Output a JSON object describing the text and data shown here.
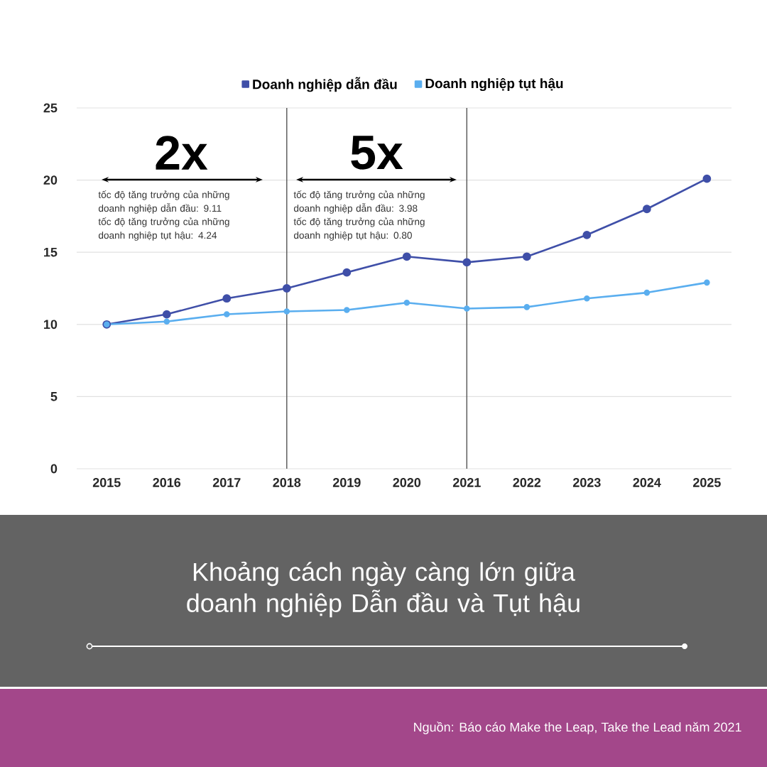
{
  "chart_data": {
    "type": "line",
    "title": "Khoảng cách ngày càng lớn giữa doanh nghiệp Dẫn đầu và Tụt hậu",
    "categories": [
      "2015",
      "2016",
      "2017",
      "2018",
      "2019",
      "2020",
      "2021",
      "2022",
      "2023",
      "2024",
      "2025"
    ],
    "series": [
      {
        "name": "Doanh nghiệp dẫn đầu",
        "color": "#3f4fa8",
        "values": [
          10,
          10.7,
          11.8,
          12.5,
          13.6,
          14.7,
          14.3,
          14.7,
          16.2,
          18.0,
          20.1
        ]
      },
      {
        "name": "Doanh nghiệp tụt hậu",
        "color": "#5aaeef",
        "values": [
          10,
          10.2,
          10.7,
          10.9,
          11.0,
          11.5,
          11.1,
          11.2,
          11.8,
          12.2,
          12.9
        ]
      }
    ],
    "ylim": [
      0,
      25
    ],
    "yticks": [
      0,
      5,
      10,
      15,
      20,
      25
    ],
    "ref_lines": [
      {
        "axis": "x",
        "value": "2018",
        "color": "#555555"
      },
      {
        "axis": "x",
        "value": "2021",
        "color": "#555555"
      }
    ],
    "annotations": [
      "2x",
      "tốc độ tăng trưởng của những doanh nghiệp dẫn đầu: 9.11",
      "tốc độ tăng trưởng của những doanh nghiệp tụt hậu: 4.24",
      "5x",
      "tốc độ tăng trưởng của những doanh nghiệp dẫn đầu: 3.98",
      "tốc độ tăng trưởng của những doanh nghiệp tụt hậu: 0.80",
      "Nguồn: Báo cáo Make the Leap, Take the Lead năm 2021"
    ],
    "grid": "y",
    "legend": "top",
    "marker": "circle",
    "line_style": "solid"
  }
}
